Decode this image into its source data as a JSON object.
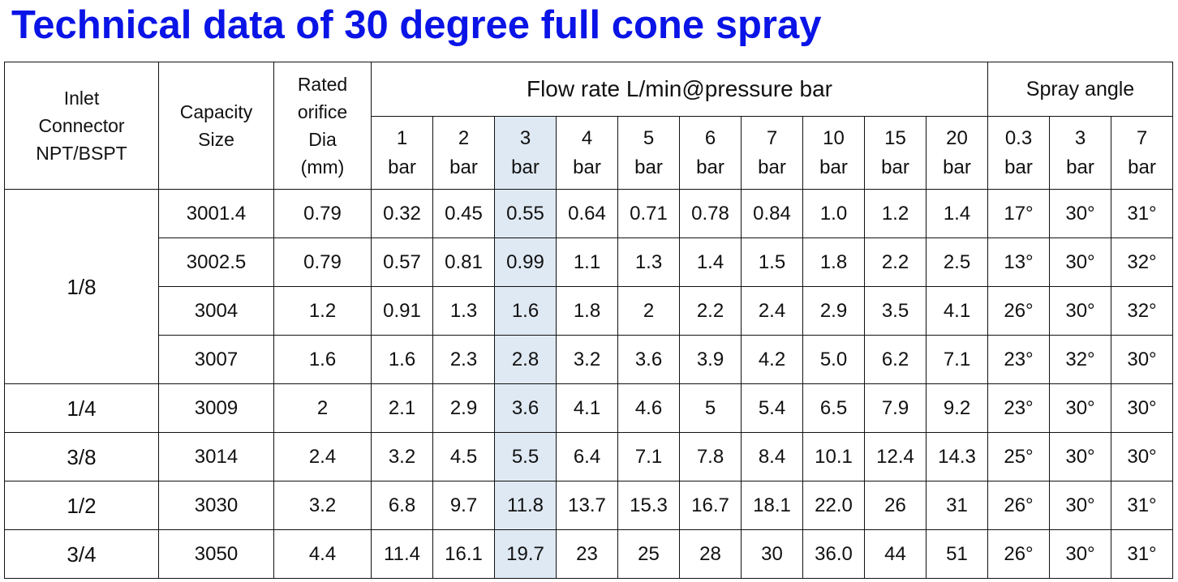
{
  "title": "Technical data of 30 degree full cone spray",
  "headers": {
    "inlet": [
      "Inlet",
      "Connector",
      "NPT/BSPT"
    ],
    "capacity": [
      "Capacity",
      "Size"
    ],
    "orifice": [
      "Rated",
      "orifice",
      "Dia",
      "(mm)"
    ],
    "flow_group": "Flow rate L/min@pressure bar",
    "angle_group": "Spray angle",
    "flow_pressures": [
      {
        "num": "1",
        "unit": "bar"
      },
      {
        "num": "2",
        "unit": "bar"
      },
      {
        "num": "3",
        "unit": "bar"
      },
      {
        "num": "4",
        "unit": "bar"
      },
      {
        "num": "5",
        "unit": "bar"
      },
      {
        "num": "6",
        "unit": "bar"
      },
      {
        "num": "7",
        "unit": "bar"
      },
      {
        "num": "10",
        "unit": "bar"
      },
      {
        "num": "15",
        "unit": "bar"
      },
      {
        "num": "20",
        "unit": "bar"
      }
    ],
    "angle_pressures": [
      {
        "num": "0.3",
        "unit": "bar"
      },
      {
        "num": "3",
        "unit": "bar"
      },
      {
        "num": "7",
        "unit": "bar"
      }
    ]
  },
  "highlight_color": "#dfe9f3",
  "title_color": "#0a14e6",
  "rows": [
    {
      "connector": "1/8",
      "size": "3001.4",
      "dia": "0.79",
      "flow": [
        "0.32",
        "0.45",
        "0.55",
        "0.64",
        "0.71",
        "0.78",
        "0.84",
        "1.0",
        "1.2",
        "1.4"
      ],
      "angle": [
        "17°",
        "30°",
        "31°"
      ]
    },
    {
      "connector": "",
      "size": "3002.5",
      "dia": "0.79",
      "flow": [
        "0.57",
        "0.81",
        "0.99",
        "1.1",
        "1.3",
        "1.4",
        "1.5",
        "1.8",
        "2.2",
        "2.5"
      ],
      "angle": [
        "13°",
        "30°",
        "32°"
      ]
    },
    {
      "connector": "",
      "size": "3004",
      "dia": "1.2",
      "flow": [
        "0.91",
        "1.3",
        "1.6",
        "1.8",
        "2",
        "2.2",
        "2.4",
        "2.9",
        "3.5",
        "4.1"
      ],
      "angle": [
        "26°",
        "30°",
        "32°"
      ]
    },
    {
      "connector": "",
      "size": "3007",
      "dia": "1.6",
      "flow": [
        "1.6",
        "2.3",
        "2.8",
        "3.2",
        "3.6",
        "3.9",
        "4.2",
        "5.0",
        "6.2",
        "7.1"
      ],
      "angle": [
        "23°",
        "32°",
        "30°"
      ]
    },
    {
      "connector": "1/4",
      "size": "3009",
      "dia": "2",
      "flow": [
        "2.1",
        "2.9",
        "3.6",
        "4.1",
        "4.6",
        "5",
        "5.4",
        "6.5",
        "7.9",
        "9.2"
      ],
      "angle": [
        "23°",
        "30°",
        "30°"
      ]
    },
    {
      "connector": "3/8",
      "size": "3014",
      "dia": "2.4",
      "flow": [
        "3.2",
        "4.5",
        "5.5",
        "6.4",
        "7.1",
        "7.8",
        "8.4",
        "10.1",
        "12.4",
        "14.3"
      ],
      "angle": [
        "25°",
        "30°",
        "30°"
      ]
    },
    {
      "connector": "1/2",
      "size": "3030",
      "dia": "3.2",
      "flow": [
        "6.8",
        "9.7",
        "11.8",
        "13.7",
        "15.3",
        "16.7",
        "18.1",
        "22.0",
        "26",
        "31"
      ],
      "angle": [
        "26°",
        "30°",
        "31°"
      ]
    },
    {
      "connector": "3/4",
      "size": "3050",
      "dia": "4.4",
      "flow": [
        "11.4",
        "16.1",
        "19.7",
        "23",
        "25",
        "28",
        "30",
        "36.0",
        "44",
        "51"
      ],
      "angle": [
        "26°",
        "30°",
        "31°"
      ]
    }
  ]
}
